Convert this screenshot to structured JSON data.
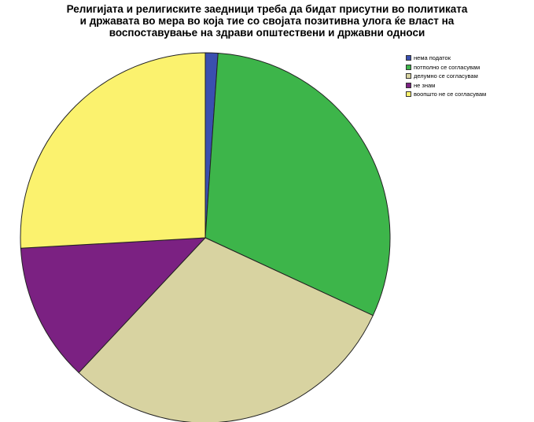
{
  "chart_data": {
    "type": "pie",
    "title_lines": [
      "Религијата и религиските заедници треба да бидат присутни во политиката",
      "и државата во мера во која тие со својата позитивна улога ќе власт на",
      "воспоставување на здрави општествени и државни односи"
    ],
    "slices": [
      {
        "label": "нема податок",
        "value": 1.1,
        "color": "#3a4fb0"
      },
      {
        "label": "потполно се согласувам",
        "value": 30.8,
        "color": "#3db54a"
      },
      {
        "label": "делумно се согласувам",
        "value": 30.1,
        "color": "#d8d3a1"
      },
      {
        "label": "не знам",
        "value": 12.1,
        "color": "#7b2182"
      },
      {
        "label": "воопшто не се согласувам",
        "value": 25.9,
        "color": "#fbf26e"
      }
    ],
    "start_angle_deg": 0,
    "direction": "clockwise",
    "legend_position": "top-right"
  }
}
